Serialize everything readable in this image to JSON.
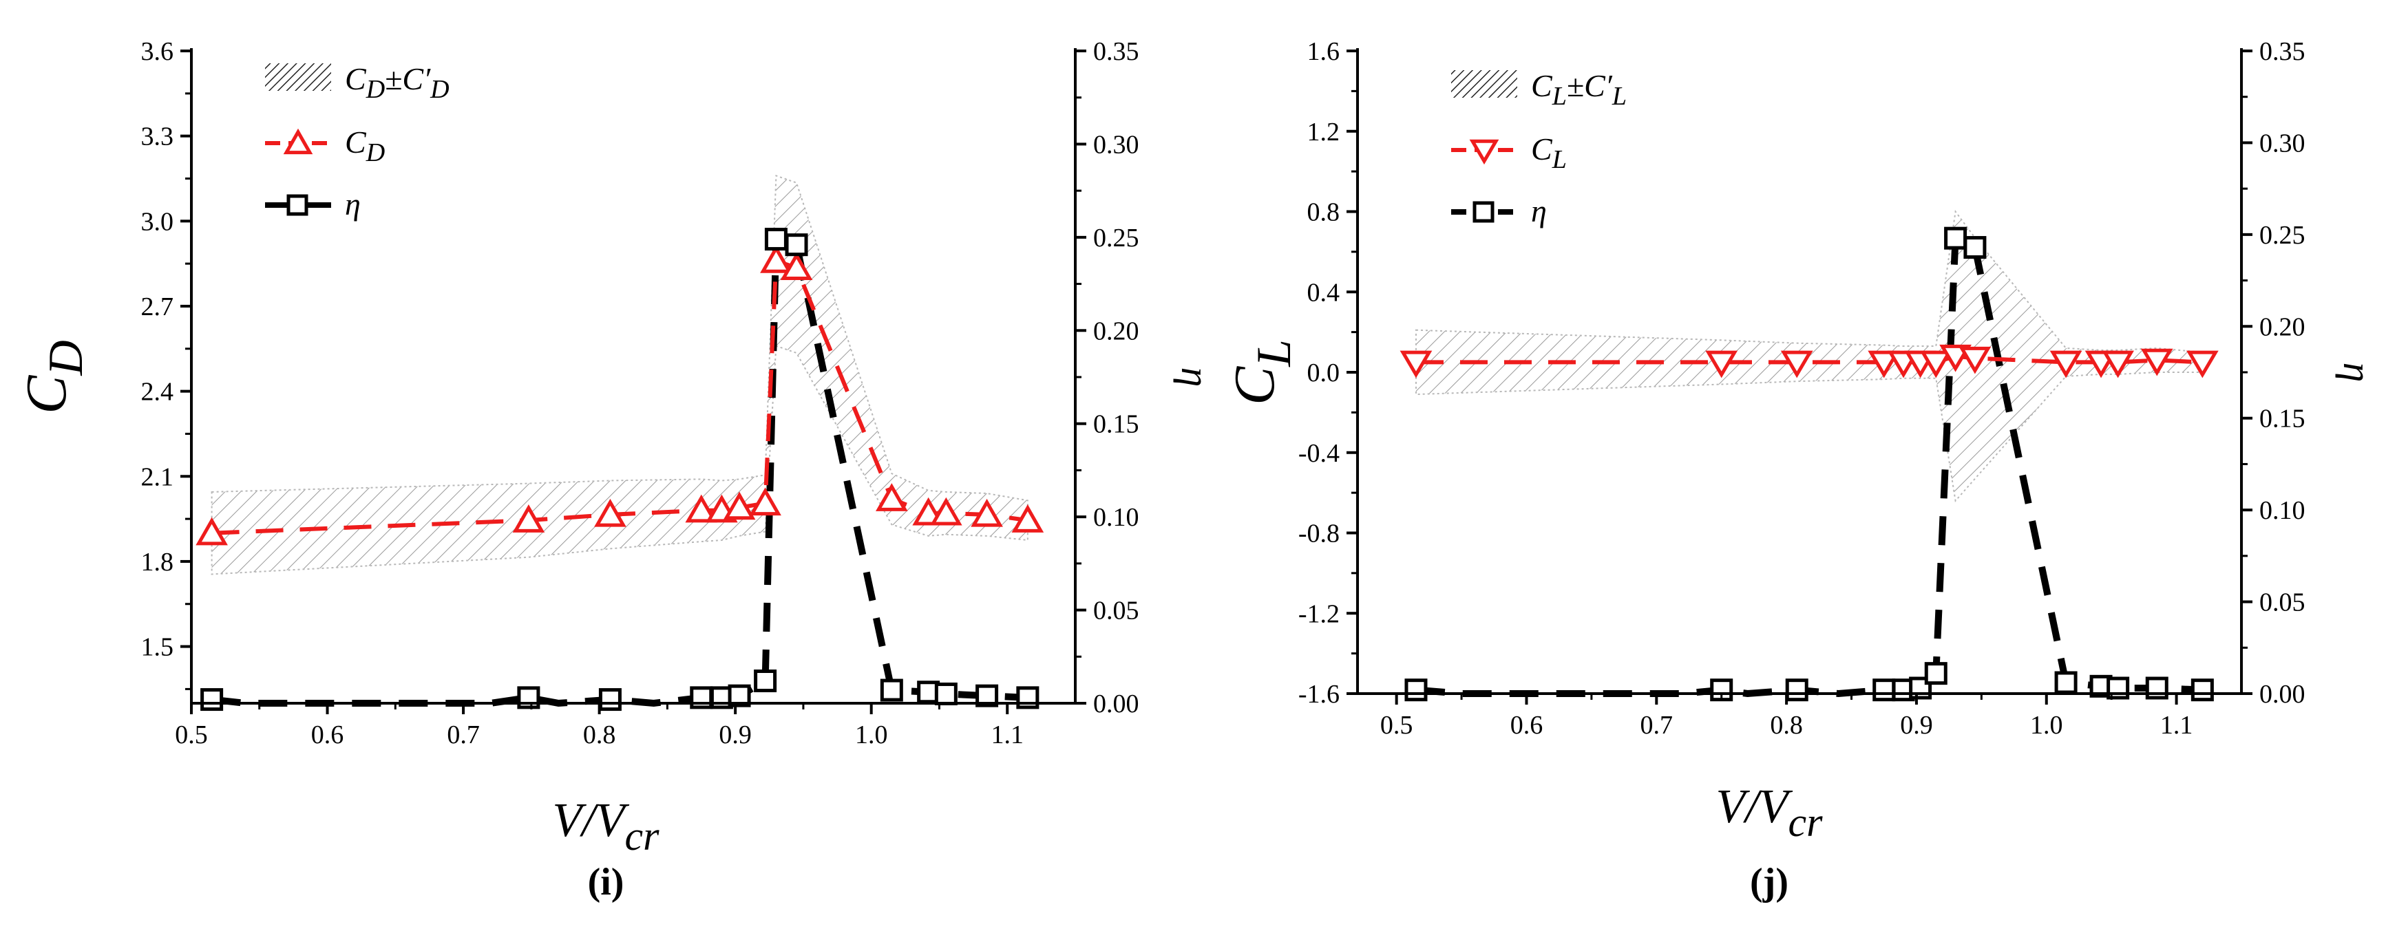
{
  "chart_data": [
    {
      "panel_label": "(i)",
      "type": "line",
      "x_label": [
        "V/V",
        "cr"
      ],
      "y_label": [
        "C",
        "D"
      ],
      "y2_label": "η",
      "xlim": [
        0.5,
        1.15
      ],
      "ylim": [
        1.3,
        3.6
      ],
      "y2lim": [
        0.0,
        0.35
      ],
      "x_ticks": [
        0.5,
        0.6,
        0.7,
        0.8,
        0.9,
        1.0,
        1.1
      ],
      "y_ticks": [
        1.5,
        1.8,
        2.1,
        2.4,
        2.7,
        3.0,
        3.3,
        3.6
      ],
      "y2_ticks": [
        0.0,
        0.05,
        0.1,
        0.15,
        0.2,
        0.25,
        0.3,
        0.35
      ],
      "x_tick_labels": [
        "0.5",
        "0.6",
        "0.7",
        "0.8",
        "0.9",
        "1.0",
        "1.1"
      ],
      "y_tick_labels": [
        "1.5",
        "1.8",
        "2.1",
        "2.4",
        "2.7",
        "3.0",
        "3.3",
        "3.6"
      ],
      "y2_tick_labels": [
        "0.00",
        "0.05",
        "0.10",
        "0.15",
        "0.20",
        "0.25",
        "0.30",
        "0.35"
      ],
      "legend": {
        "placement": "top-left",
        "band": [
          "C",
          "D",
          "±C′",
          "D"
        ],
        "mean": [
          "C",
          "D"
        ],
        "eta": "η"
      },
      "x": [
        0.515,
        0.748,
        0.808,
        0.875,
        0.89,
        0.903,
        0.922,
        0.93,
        0.945,
        1.015,
        1.042,
        1.055,
        1.085,
        1.115
      ],
      "mean": [
        1.9,
        1.945,
        1.965,
        1.98,
        1.98,
        1.99,
        2.005,
        2.86,
        2.835,
        2.02,
        1.97,
        1.97,
        1.965,
        1.945
      ],
      "band_half_width": [
        0.145,
        0.13,
        0.12,
        0.11,
        0.105,
        0.1,
        0.1,
        0.3,
        0.3,
        0.09,
        0.08,
        0.075,
        0.075,
        0.07
      ],
      "eta": [
        0.002,
        0.003,
        0.002,
        0.003,
        0.003,
        0.004,
        0.012,
        0.249,
        0.246,
        0.007,
        0.006,
        0.005,
        0.004,
        0.003
      ],
      "eta_line": {
        "x": [
          0.515,
          0.54,
          0.6,
          0.66,
          0.72,
          0.748,
          0.77,
          0.808,
          0.84,
          0.875,
          0.89,
          0.903,
          0.922,
          0.93,
          0.945,
          1.015,
          1.042,
          1.055,
          1.085,
          1.115
        ],
        "y": [
          0.002,
          0.0,
          0.0,
          0.0,
          0.0,
          0.003,
          0.0,
          0.002,
          0.0,
          0.003,
          0.003,
          0.004,
          0.012,
          0.249,
          0.246,
          0.007,
          0.006,
          0.005,
          0.004,
          0.003
        ]
      },
      "colors": {
        "mean": "#ee1c1c",
        "eta": "#000000",
        "band": "#a8a8a8"
      }
    },
    {
      "panel_label": "(j)",
      "type": "line",
      "x_label": [
        "V/V",
        "cr"
      ],
      "y_label": [
        "C",
        "L"
      ],
      "y2_label": "η",
      "xlim": [
        0.47,
        1.15
      ],
      "ylim": [
        -1.6,
        1.6
      ],
      "y2lim": [
        0.0,
        0.35
      ],
      "x_ticks": [
        0.5,
        0.6,
        0.7,
        0.8,
        0.9,
        1.0,
        1.1
      ],
      "y_ticks": [
        -1.6,
        -1.2,
        -0.8,
        -0.4,
        0.0,
        0.4,
        0.8,
        1.2,
        1.6
      ],
      "y2_ticks": [
        0.0,
        0.05,
        0.1,
        0.15,
        0.2,
        0.25,
        0.3,
        0.35
      ],
      "x_tick_labels": [
        "0.5",
        "0.6",
        "0.7",
        "0.8",
        "0.9",
        "1.0",
        "1.1"
      ],
      "y_tick_labels": [
        "-1.6",
        "-1.2",
        "-0.8",
        "-0.4",
        "0.0",
        "0.4",
        "0.8",
        "1.2",
        "1.6"
      ],
      "y2_tick_labels": [
        "0.00",
        "0.05",
        "0.10",
        "0.15",
        "0.20",
        "0.25",
        "0.30",
        "0.35"
      ],
      "legend": {
        "placement": "top-left",
        "band": [
          "C",
          "L",
          "±C′",
          "L"
        ],
        "mean": [
          "C",
          "L"
        ],
        "eta": "η"
      },
      "x": [
        0.515,
        0.75,
        0.808,
        0.875,
        0.89,
        0.903,
        0.915,
        0.93,
        0.945,
        1.015,
        1.042,
        1.055,
        1.085,
        1.12
      ],
      "mean": [
        0.05,
        0.05,
        0.05,
        0.05,
        0.05,
        0.05,
        0.05,
        0.08,
        0.07,
        0.05,
        0.05,
        0.05,
        0.06,
        0.05
      ],
      "band_half_width": [
        0.16,
        0.11,
        0.095,
        0.085,
        0.08,
        0.08,
        0.08,
        0.72,
        0.6,
        0.07,
        0.06,
        0.06,
        0.06,
        0.05
      ],
      "eta": [
        0.002,
        0.002,
        0.002,
        0.002,
        0.002,
        0.003,
        0.011,
        0.248,
        0.243,
        0.006,
        0.004,
        0.003,
        0.003,
        0.002
      ],
      "eta_line": {
        "x": [
          0.515,
          0.55,
          0.6,
          0.66,
          0.72,
          0.75,
          0.77,
          0.808,
          0.84,
          0.875,
          0.89,
          0.903,
          0.915,
          0.93,
          0.945,
          1.015,
          1.042,
          1.055,
          1.085,
          1.12
        ],
        "y": [
          0.002,
          0.0,
          0.0,
          0.0,
          0.0,
          0.002,
          0.0,
          0.002,
          0.0,
          0.002,
          0.002,
          0.003,
          0.011,
          0.248,
          0.243,
          0.006,
          0.004,
          0.003,
          0.003,
          0.002
        ]
      },
      "colors": {
        "mean": "#ee1c1c",
        "eta": "#000000",
        "band": "#a8a8a8"
      }
    }
  ]
}
